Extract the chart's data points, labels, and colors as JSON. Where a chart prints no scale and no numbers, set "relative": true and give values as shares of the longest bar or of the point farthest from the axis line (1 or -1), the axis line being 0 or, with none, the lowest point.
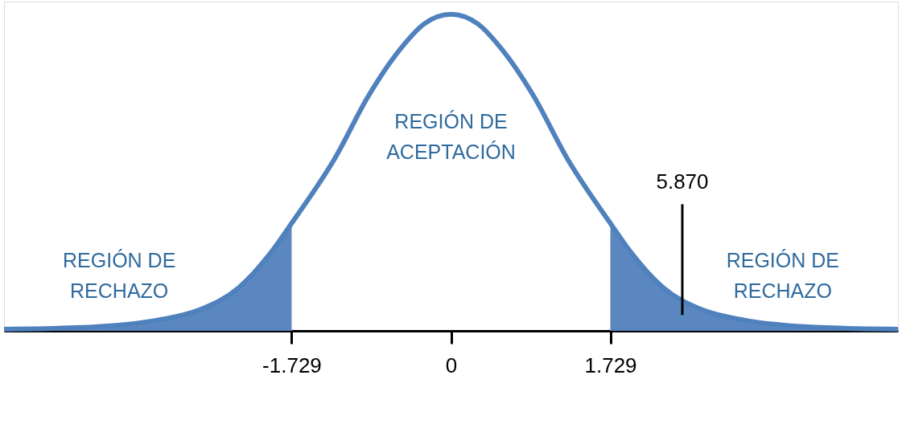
{
  "chart_data": {
    "type": "line",
    "relative": true,
    "xlim": [
      -4.85,
      4.85
    ],
    "xticks": [
      -1.729,
      0,
      1.729
    ],
    "series": [
      {
        "color": "#4f81bd",
        "x": [
          -4.85,
          -4.06,
          -3.18,
          -2.74,
          -2.3,
          -1.96,
          -1.729,
          -1.25,
          -0.9,
          -0.55,
          -0.29,
          0,
          0.29,
          0.55,
          0.9,
          1.25,
          1.729,
          1.96,
          2.3,
          2.74,
          3.18,
          4.06,
          4.85
        ],
        "values": [
          0.005,
          0.01,
          0.034,
          0.065,
          0.137,
          0.245,
          0.34,
          0.55,
          0.74,
          0.89,
          0.97,
          1.0,
          0.97,
          0.89,
          0.74,
          0.55,
          0.34,
          0.245,
          0.137,
          0.065,
          0.034,
          0.01,
          0.005
        ]
      },
      {
        "type": "area",
        "color": "#5b87c0",
        "x": [
          -4.85,
          -4.06,
          -3.18,
          -2.74,
          -2.3,
          -1.96,
          -1.729
        ],
        "values": [
          0.005,
          0.01,
          0.034,
          0.065,
          0.137,
          0.245,
          0.34
        ]
      },
      {
        "type": "area",
        "color": "#5b87c0",
        "x": [
          1.729,
          1.96,
          2.3,
          2.74,
          3.18,
          4.06,
          4.85
        ],
        "values": [
          0.34,
          0.245,
          0.137,
          0.065,
          0.034,
          0.01,
          0.005
        ]
      }
    ],
    "ref_lines": [
      {
        "axis": "x",
        "value": 2.51,
        "color": "#000000"
      }
    ],
    "annotations": [
      "REGIÓN DE RECHAZO",
      "REGIÓN DE ACEPTACIÓN",
      "REGIÓN DE RECHAZO",
      "5.870"
    ]
  }
}
